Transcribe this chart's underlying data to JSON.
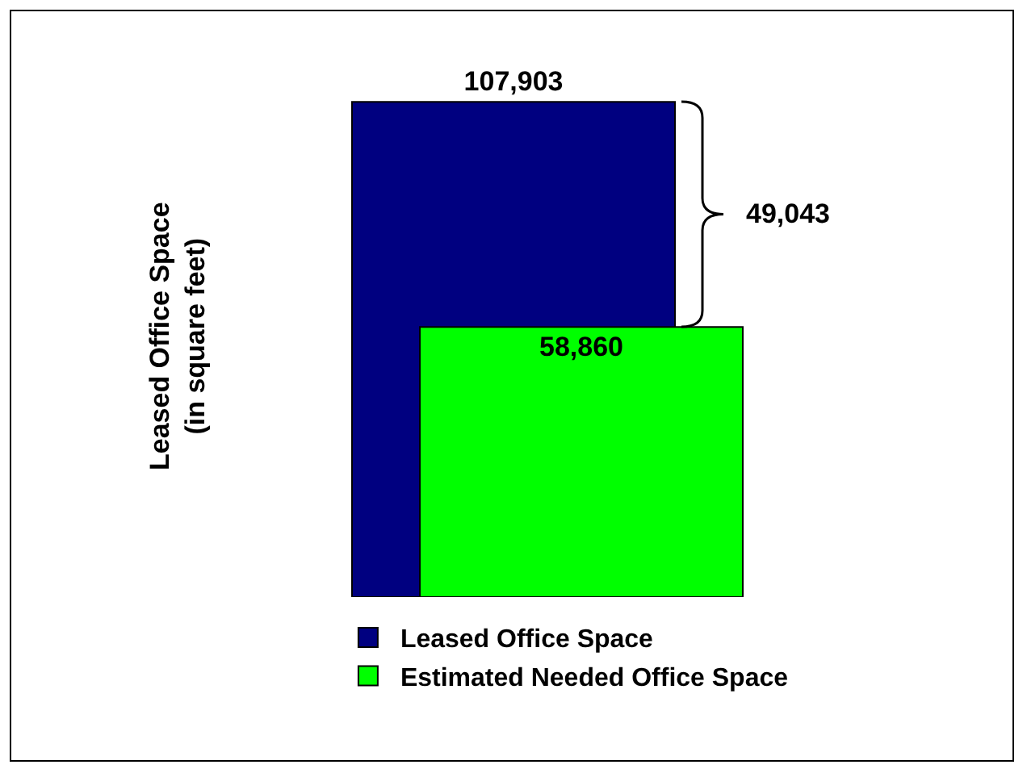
{
  "chart_data": {
    "type": "bar",
    "ylabel": "Leased Office Space\n(in square feet)",
    "categories": [
      null
    ],
    "series": [
      {
        "name": "Leased Office Space",
        "color": "#000080",
        "values": [
          107903
        ],
        "value_labels": [
          "107,903"
        ]
      },
      {
        "name": "Estimated Needed Office Space",
        "color": "#00ff00",
        "values": [
          58860
        ],
        "value_labels": [
          "58,860"
        ]
      }
    ],
    "legend": "bottom",
    "annotations": [
      "49,043"
    ]
  }
}
